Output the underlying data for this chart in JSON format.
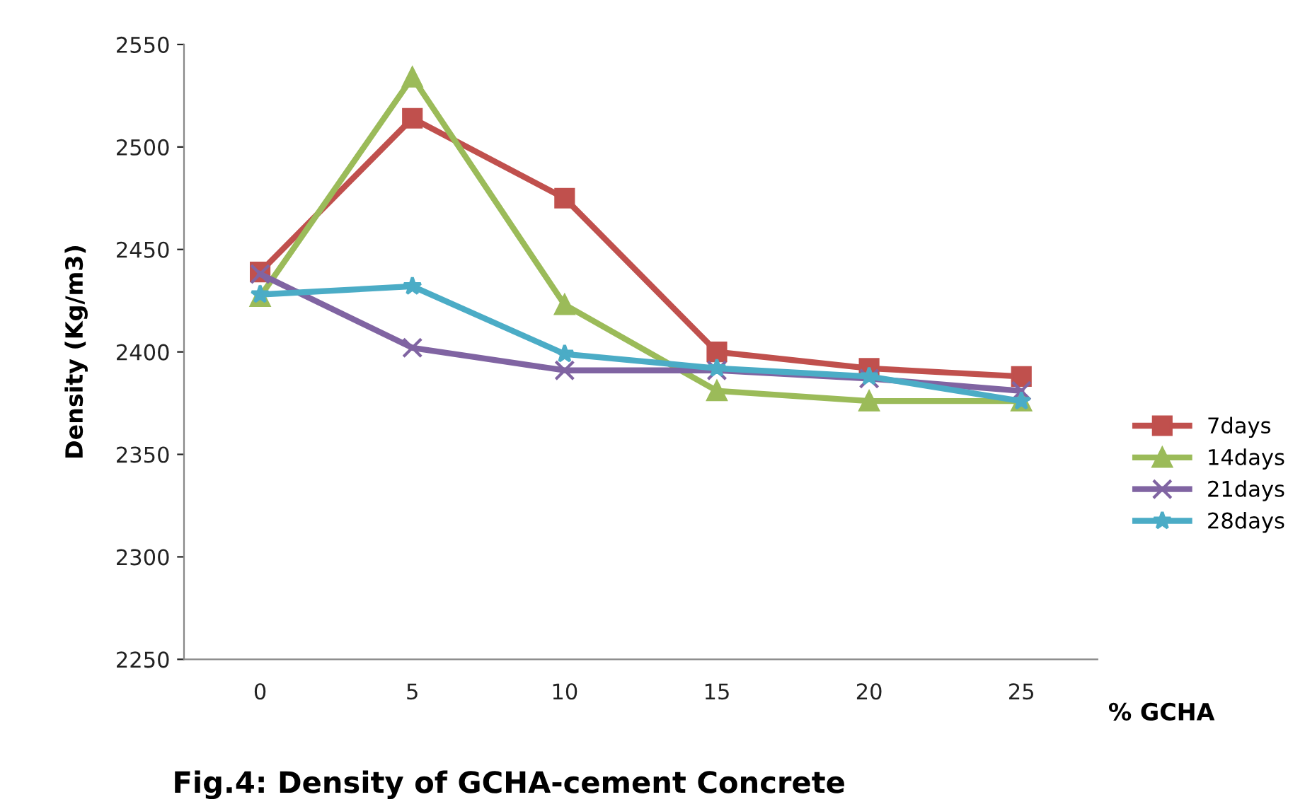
{
  "chart_data": {
    "type": "line",
    "title": "Fig.4: Density of GCHA-cement Concrete",
    "xlabel": "% GCHA",
    "ylabel": "Density (Kg/m3)",
    "categories": [
      "0",
      "5",
      "10",
      "15",
      "20",
      "25"
    ],
    "series": [
      {
        "name": "7days",
        "color": "#c0504d",
        "marker": "square",
        "values": [
          2439,
          2514,
          2475,
          2400,
          2392,
          2388
        ]
      },
      {
        "name": "14days",
        "color": "#9bbb59",
        "marker": "triangle",
        "values": [
          2427,
          2534,
          2423,
          2381,
          2376,
          2376
        ]
      },
      {
        "name": "21days",
        "color": "#8064a2",
        "marker": "cross",
        "values": [
          2438,
          2402,
          2391,
          2391,
          2387,
          2381
        ]
      },
      {
        "name": "28days",
        "color": "#4bacc6",
        "marker": "star",
        "values": [
          2428,
          2432,
          2399,
          2392,
          2388,
          2376
        ]
      }
    ],
    "ylim": [
      2250,
      2550
    ],
    "yticks": [
      2250,
      2300,
      2350,
      2400,
      2450,
      2500,
      2550
    ],
    "grid": false,
    "legend": "right",
    "line_style": "solid"
  }
}
